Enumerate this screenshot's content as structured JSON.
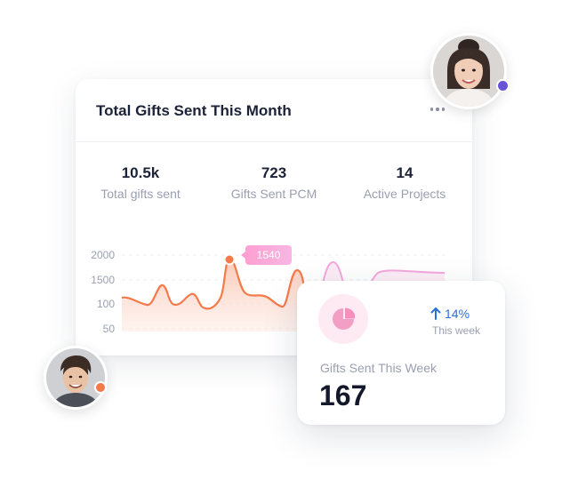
{
  "main_card": {
    "title": "Total Gifts Sent This Month",
    "stats": [
      {
        "value": "10.5k",
        "label": "Total gifts sent"
      },
      {
        "value": "723",
        "label": "Gifts Sent PCM"
      },
      {
        "value": "14",
        "label": "Active Projects"
      }
    ],
    "tooltip": "1540"
  },
  "chart_data": {
    "type": "area",
    "y_tick_labels": [
      "2000",
      "1500",
      "100",
      "50"
    ],
    "highlight": {
      "value": 1540
    },
    "colors": {
      "line": "#f47a4a",
      "fill": "#fcd7c9",
      "faded_line": "#f3a8dd",
      "marker": "#f47a4a"
    },
    "grid": "dashed horizontal"
  },
  "week_card": {
    "trend_value": "14%",
    "trend_period": "This week",
    "label": "Gifts Sent This Week",
    "value": "167",
    "icon": "pie-chart-icon"
  },
  "avatars": [
    {
      "name": "avatar-woman",
      "status_color": "#6a54d6"
    },
    {
      "name": "avatar-man",
      "status_color": "#f47a4a"
    }
  ]
}
